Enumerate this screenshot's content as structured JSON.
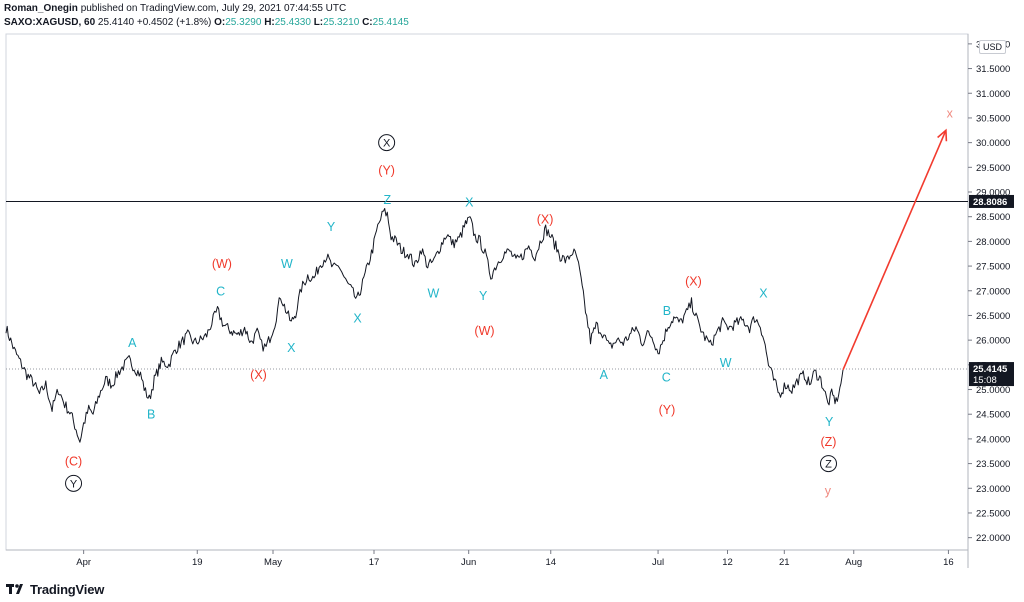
{
  "header": {
    "author": "Roman_Onegin",
    "published": "published on TradingView.com, July 29, 2021 07:44:55 UTC",
    "symbol": "SAXO:XAGUSD, 60",
    "last": "25.4140",
    "change": "+0.4502 (+1.8%)",
    "open_label": "O:",
    "open": "25.3290",
    "high_label": "H:",
    "high": "25.4330",
    "low_label": "L:",
    "low": "25.3210",
    "close_label": "C:",
    "close": "25.4145"
  },
  "currency_button": "USD",
  "footer": {
    "logo_text": "TradingView"
  },
  "colors": {
    "cyan": "#22b5c9",
    "red": "#f0392b",
    "salmon": "#f08a80",
    "black": "#131722",
    "arrow": "#f23b2f",
    "axis_text": "#131722"
  },
  "chart_data": {
    "type": "line",
    "title": "SAXO:XAGUSD, 60",
    "ylabel": "USD",
    "ylim": [
      21.75,
      32.2
    ],
    "y_ticks": [
      "22.0000",
      "22.5000",
      "23.0000",
      "23.5000",
      "24.0000",
      "24.5000",
      "25.0000",
      "25.5000",
      "26.0000",
      "26.5000",
      "27.0000",
      "27.5000",
      "28.0000",
      "28.5000",
      "29.0000",
      "29.5000",
      "30.0000",
      "30.5000",
      "31.0000",
      "31.5000",
      "32.0000"
    ],
    "x_ticks": [
      {
        "label": "Apr",
        "day": 0
      },
      {
        "label": "19",
        "day": 18
      },
      {
        "label": "May",
        "day": 30
      },
      {
        "label": "17",
        "day": 46
      },
      {
        "label": "Jun",
        "day": 61
      },
      {
        "label": "14",
        "day": 74
      },
      {
        "label": "Jul",
        "day": 91
      },
      {
        "label": "12",
        "day": 102
      },
      {
        "label": "21",
        "day": 111
      },
      {
        "label": "Aug",
        "day": 122
      },
      {
        "label": "16",
        "day": 137
      }
    ],
    "x_range_days": [
      -12.3,
      140.1
    ],
    "series": [
      {
        "name": "XAGUSD",
        "points": [
          [
            -12.3,
            26.25
          ],
          [
            -11,
            25.8
          ],
          [
            -10,
            25.55
          ],
          [
            -9,
            25.3
          ],
          [
            -8,
            25.15
          ],
          [
            -7,
            24.9
          ],
          [
            -6,
            25.1
          ],
          [
            -5,
            24.6
          ],
          [
            -4,
            25.0
          ],
          [
            -3,
            24.7
          ],
          [
            -2,
            24.5
          ],
          [
            -1.2,
            24.2
          ],
          [
            -0.6,
            23.95
          ],
          [
            0,
            24.3
          ],
          [
            0.8,
            24.6
          ],
          [
            1.5,
            24.5
          ],
          [
            2.5,
            24.9
          ],
          [
            3.5,
            25.2
          ],
          [
            4.5,
            25.1
          ],
          [
            5.5,
            25.35
          ],
          [
            6.5,
            25.5
          ],
          [
            7.2,
            25.6
          ],
          [
            8,
            25.45
          ],
          [
            9,
            25.3
          ],
          [
            9.8,
            24.95
          ],
          [
            10.4,
            24.8
          ],
          [
            11.2,
            25.2
          ],
          [
            12.3,
            25.55
          ],
          [
            13.5,
            25.5
          ],
          [
            14.5,
            25.8
          ],
          [
            15.5,
            25.95
          ],
          [
            16.5,
            26.1
          ],
          [
            17.5,
            25.95
          ],
          [
            18.5,
            26.0
          ],
          [
            19.5,
            26.1
          ],
          [
            20.3,
            26.35
          ],
          [
            21.2,
            26.6
          ],
          [
            22.2,
            26.3
          ],
          [
            23.2,
            26.2
          ],
          [
            24.5,
            26.1
          ],
          [
            25.5,
            26.25
          ],
          [
            26.5,
            25.95
          ],
          [
            27.5,
            26.15
          ],
          [
            28.2,
            25.9
          ],
          [
            28.9,
            25.85
          ],
          [
            29.5,
            26.05
          ],
          [
            30.3,
            26.35
          ],
          [
            31.2,
            26.9
          ],
          [
            32.2,
            26.55
          ],
          [
            32.9,
            26.35
          ],
          [
            33.6,
            26.55
          ],
          [
            34.5,
            27.05
          ],
          [
            35.5,
            27.3
          ],
          [
            36.5,
            27.25
          ],
          [
            37.5,
            27.55
          ],
          [
            38.5,
            27.7
          ],
          [
            39.5,
            27.45
          ],
          [
            40.5,
            27.5
          ],
          [
            41.5,
            27.2
          ],
          [
            42.5,
            27.0
          ],
          [
            43.3,
            26.8
          ],
          [
            44.2,
            27.15
          ],
          [
            45,
            27.5
          ],
          [
            45.8,
            27.85
          ],
          [
            46.6,
            28.3
          ],
          [
            47.5,
            28.6
          ],
          [
            48.1,
            28.55
          ],
          [
            48.7,
            28.1
          ],
          [
            49.5,
            28.0
          ],
          [
            50.5,
            27.8
          ],
          [
            51.5,
            27.75
          ],
          [
            52.5,
            27.5
          ],
          [
            53.5,
            27.85
          ],
          [
            54.5,
            27.5
          ],
          [
            55.5,
            27.6
          ],
          [
            56.5,
            27.9
          ],
          [
            57.5,
            28.15
          ],
          [
            58.5,
            27.95
          ],
          [
            59.5,
            28.05
          ],
          [
            60.5,
            28.35
          ],
          [
            61.2,
            28.45
          ],
          [
            62,
            28.1
          ],
          [
            62.8,
            28.0
          ],
          [
            63.6,
            27.75
          ],
          [
            64.5,
            27.3
          ],
          [
            65.5,
            27.55
          ],
          [
            66.5,
            27.75
          ],
          [
            67.5,
            27.8
          ],
          [
            68.5,
            27.6
          ],
          [
            69.5,
            27.7
          ],
          [
            70.5,
            27.9
          ],
          [
            71.5,
            27.7
          ],
          [
            72.5,
            28.05
          ],
          [
            73.2,
            28.25
          ],
          [
            74,
            28.1
          ],
          [
            74.8,
            27.9
          ],
          [
            75.5,
            27.7
          ],
          [
            76.5,
            27.6
          ],
          [
            77.5,
            27.8
          ],
          [
            78.2,
            27.65
          ],
          [
            78.8,
            27.2
          ],
          [
            79.5,
            26.6
          ],
          [
            80.3,
            26.0
          ],
          [
            81.2,
            26.3
          ],
          [
            82.2,
            26.15
          ],
          [
            83.3,
            25.85
          ],
          [
            84.5,
            26.0
          ],
          [
            85.5,
            25.95
          ],
          [
            86.5,
            26.1
          ],
          [
            87.5,
            26.25
          ],
          [
            88.5,
            25.95
          ],
          [
            89.5,
            26.15
          ],
          [
            90.2,
            26.05
          ],
          [
            91,
            25.75
          ],
          [
            91.8,
            26.0
          ],
          [
            92.6,
            26.3
          ],
          [
            93.5,
            26.45
          ],
          [
            94.5,
            26.35
          ],
          [
            95.5,
            26.55
          ],
          [
            96.3,
            26.75
          ],
          [
            97.2,
            26.4
          ],
          [
            98.2,
            26.1
          ],
          [
            99.3,
            25.9
          ],
          [
            100.3,
            26.15
          ],
          [
            101.2,
            26.35
          ],
          [
            102.3,
            26.25
          ],
          [
            103.5,
            26.35
          ],
          [
            104.5,
            26.4
          ],
          [
            105.5,
            26.25
          ],
          [
            106.3,
            26.45
          ],
          [
            107.2,
            26.3
          ],
          [
            107.8,
            26.0
          ],
          [
            108.5,
            25.5
          ],
          [
            109.3,
            25.2
          ],
          [
            110.2,
            24.9
          ],
          [
            111.2,
            25.1
          ],
          [
            112.2,
            25.0
          ],
          [
            113.2,
            25.2
          ],
          [
            114.2,
            25.3
          ],
          [
            115,
            25.1
          ],
          [
            115.8,
            25.35
          ],
          [
            116.6,
            25.25
          ],
          [
            117.3,
            25.0
          ],
          [
            117.9,
            24.7
          ],
          [
            118.5,
            24.9
          ],
          [
            119.2,
            24.75
          ],
          [
            119.8,
            25.0
          ],
          [
            120.3,
            25.4
          ]
        ]
      }
    ],
    "horizontal_lines": [
      {
        "value": 28.8086,
        "label": "28.8086",
        "style": "solid"
      },
      {
        "value": 25.4145,
        "label": "25.4145",
        "sublabel": "15:08",
        "style": "dotted"
      }
    ],
    "projection_arrow": {
      "from": [
        120.3,
        25.4
      ],
      "to": [
        136.6,
        30.25
      ]
    },
    "annotations": [
      {
        "text": "(C)",
        "day": -1.6,
        "value": 23.55,
        "color": "red"
      },
      {
        "text": "Y",
        "day": -1.6,
        "value": 23.1,
        "color": "black",
        "circled": true
      },
      {
        "text": "A",
        "day": 7.7,
        "value": 25.95,
        "color": "cyan"
      },
      {
        "text": "B",
        "day": 10.7,
        "value": 24.5,
        "color": "cyan"
      },
      {
        "text": "C",
        "day": 21.7,
        "value": 27.0,
        "color": "cyan"
      },
      {
        "text": "(W)",
        "day": 21.9,
        "value": 27.55,
        "color": "red"
      },
      {
        "text": "(X)",
        "day": 27.7,
        "value": 25.3,
        "color": "red"
      },
      {
        "text": "W",
        "day": 32.2,
        "value": 27.55,
        "color": "cyan"
      },
      {
        "text": "X",
        "day": 32.9,
        "value": 25.85,
        "color": "cyan"
      },
      {
        "text": "Y",
        "day": 39.2,
        "value": 28.3,
        "color": "cyan"
      },
      {
        "text": "X",
        "day": 43.4,
        "value": 26.45,
        "color": "cyan"
      },
      {
        "text": "X",
        "day": 48.0,
        "value": 30.0,
        "color": "black",
        "circled": true
      },
      {
        "text": "(Y)",
        "day": 48.0,
        "value": 29.45,
        "color": "red"
      },
      {
        "text": "Z",
        "day": 48.1,
        "value": 28.85,
        "color": "cyan"
      },
      {
        "text": "W",
        "day": 55.4,
        "value": 26.95,
        "color": "cyan"
      },
      {
        "text": "X",
        "day": 61.1,
        "value": 28.8,
        "color": "cyan"
      },
      {
        "text": "Y",
        "day": 63.3,
        "value": 26.9,
        "color": "cyan"
      },
      {
        "text": "(W)",
        "day": 63.5,
        "value": 26.2,
        "color": "red"
      },
      {
        "text": "(X)",
        "day": 73.1,
        "value": 28.45,
        "color": "red"
      },
      {
        "text": "A",
        "day": 82.4,
        "value": 25.3,
        "color": "cyan"
      },
      {
        "text": "B",
        "day": 92.4,
        "value": 26.6,
        "color": "cyan"
      },
      {
        "text": "C",
        "day": 92.3,
        "value": 25.25,
        "color": "cyan"
      },
      {
        "text": "(Y)",
        "day": 92.4,
        "value": 24.6,
        "color": "red"
      },
      {
        "text": "(X)",
        "day": 96.6,
        "value": 27.2,
        "color": "red"
      },
      {
        "text": "W",
        "day": 101.7,
        "value": 25.55,
        "color": "cyan"
      },
      {
        "text": "X",
        "day": 107.7,
        "value": 26.95,
        "color": "cyan"
      },
      {
        "text": "Y",
        "day": 118.1,
        "value": 24.35,
        "color": "cyan"
      },
      {
        "text": "(Z)",
        "day": 118.0,
        "value": 23.95,
        "color": "red"
      },
      {
        "text": "Z",
        "day": 118.0,
        "value": 23.5,
        "color": "black",
        "circled": true
      },
      {
        "text": "y",
        "day": 117.9,
        "value": 22.95,
        "color": "salmon"
      },
      {
        "text": "x",
        "day": 137.2,
        "value": 30.6,
        "color": "salmon"
      }
    ]
  }
}
